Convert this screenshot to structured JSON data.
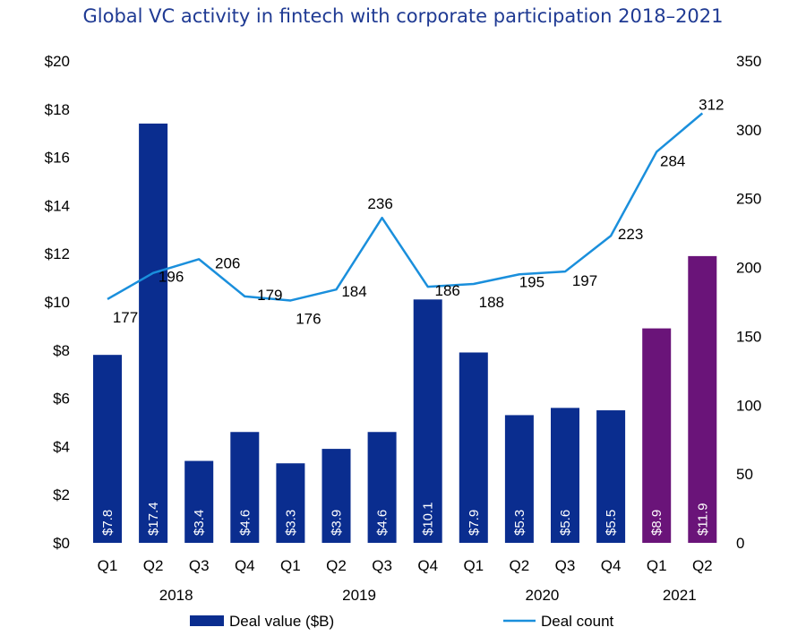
{
  "title": "Global VC activity in fintech with corporate participation 2018–2021",
  "chart_data": {
    "type": "bar",
    "categories": [
      "Q1",
      "Q2",
      "Q3",
      "Q4",
      "Q1",
      "Q2",
      "Q3",
      "Q4",
      "Q1",
      "Q2",
      "Q3",
      "Q4",
      "Q1",
      "Q2"
    ],
    "years": [
      {
        "label": "2018",
        "span": [
          0,
          3
        ]
      },
      {
        "label": "2019",
        "span": [
          4,
          7
        ]
      },
      {
        "label": "2020",
        "span": [
          8,
          11
        ]
      },
      {
        "label": "2021",
        "span": [
          12,
          13
        ]
      }
    ],
    "series": [
      {
        "name": "Deal value ($B)",
        "kind": "bar",
        "axis": "left",
        "values": [
          7.8,
          17.4,
          3.4,
          4.6,
          3.3,
          3.9,
          4.6,
          10.1,
          7.9,
          5.3,
          5.6,
          5.5,
          8.9,
          11.9
        ],
        "labels": [
          "$7.8",
          "$17.4",
          "$3.4",
          "$4.6",
          "$3.3",
          "$3.9",
          "$4.6",
          "$10.1",
          "$7.9",
          "$5.3",
          "$5.6",
          "$5.5",
          "$8.9",
          "$11.9"
        ]
      },
      {
        "name": "Deal count",
        "kind": "line",
        "axis": "right",
        "values": [
          177,
          196,
          206,
          179,
          176,
          184,
          236,
          186,
          188,
          195,
          197,
          223,
          284,
          312
        ]
      }
    ],
    "y_left": {
      "min": 0,
      "max": 20,
      "ticks": [
        "$0",
        "$2",
        "$4",
        "$6",
        "$8",
        "$10",
        "$12",
        "$14",
        "$16",
        "$18",
        "$20"
      ]
    },
    "y_right": {
      "min": 0,
      "max": 350,
      "ticks": [
        "0",
        "50",
        "100",
        "150",
        "200",
        "250",
        "300",
        "350"
      ]
    },
    "colors": {
      "bar_default": "#0a2d8f",
      "bar_2021": "#6a1479",
      "line": "#1a8fdc"
    },
    "highlight_from_index": 12,
    "legend": "bottom",
    "grid": false
  }
}
